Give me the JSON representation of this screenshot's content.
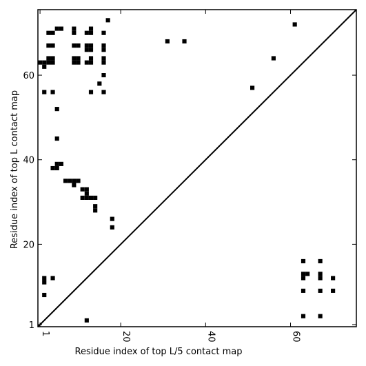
{
  "chart_data": {
    "type": "heatmap",
    "title": "",
    "xlabel": "Residue index of top L/5 contact map",
    "ylabel": "Residue index of top L contact map",
    "xlim": [
      0.5,
      75.5
    ],
    "ylim": [
      0.5,
      75.5
    ],
    "xticks": [
      1,
      20,
      40,
      60
    ],
    "yticks": [
      1,
      20,
      40,
      60
    ],
    "diagonal": true,
    "upper_contacts": [
      [
        17,
        73
      ],
      [
        16,
        70
      ],
      [
        12,
        70
      ],
      [
        12,
        66
      ],
      [
        12,
        67
      ],
      [
        13,
        66
      ],
      [
        13,
        67
      ],
      [
        13,
        70
      ],
      [
        13,
        71
      ],
      [
        12,
        63
      ],
      [
        13,
        63
      ],
      [
        13,
        64
      ],
      [
        9,
        70
      ],
      [
        9,
        71
      ],
      [
        9,
        67
      ],
      [
        10,
        67
      ],
      [
        9,
        63
      ],
      [
        9,
        64
      ],
      [
        10,
        63
      ],
      [
        10,
        64
      ],
      [
        5,
        71
      ],
      [
        6,
        71
      ],
      [
        3,
        70
      ],
      [
        4,
        70
      ],
      [
        3,
        67
      ],
      [
        4,
        67
      ],
      [
        3,
        63
      ],
      [
        3,
        64
      ],
      [
        4,
        63
      ],
      [
        4,
        64
      ],
      [
        1,
        63
      ],
      [
        2,
        63
      ],
      [
        2,
        62
      ],
      [
        16,
        66
      ],
      [
        16,
        67
      ],
      [
        16,
        63
      ],
      [
        16,
        64
      ],
      [
        16,
        60
      ],
      [
        15,
        58
      ],
      [
        16,
        56
      ],
      [
        13,
        56
      ],
      [
        4,
        56
      ],
      [
        2,
        56
      ],
      [
        5,
        52
      ],
      [
        5,
        45
      ],
      [
        5,
        38
      ],
      [
        4,
        38
      ],
      [
        5,
        39
      ],
      [
        6,
        39
      ],
      [
        7,
        35
      ],
      [
        8,
        35
      ],
      [
        9,
        35
      ],
      [
        10,
        35
      ],
      [
        9,
        34
      ],
      [
        11,
        33
      ],
      [
        12,
        33
      ],
      [
        12,
        32
      ],
      [
        12,
        31
      ],
      [
        11,
        31
      ],
      [
        13,
        31
      ],
      [
        14,
        31
      ],
      [
        14,
        29
      ],
      [
        14,
        28
      ],
      [
        18,
        26
      ],
      [
        18,
        24
      ],
      [
        31,
        68
      ],
      [
        35,
        68
      ],
      [
        51,
        57
      ],
      [
        56,
        64
      ],
      [
        61,
        72
      ]
    ],
    "lower_contacts": [
      [
        63,
        16
      ],
      [
        67,
        16
      ],
      [
        63,
        13
      ],
      [
        64,
        13
      ],
      [
        63,
        12
      ],
      [
        67,
        13
      ],
      [
        67,
        12
      ],
      [
        70,
        12
      ],
      [
        63,
        9
      ],
      [
        67,
        9
      ],
      [
        70,
        9
      ],
      [
        63,
        3
      ],
      [
        67,
        3
      ],
      [
        2,
        12
      ],
      [
        2,
        11
      ],
      [
        4,
        12
      ],
      [
        2,
        8
      ],
      [
        12,
        2
      ]
    ]
  }
}
